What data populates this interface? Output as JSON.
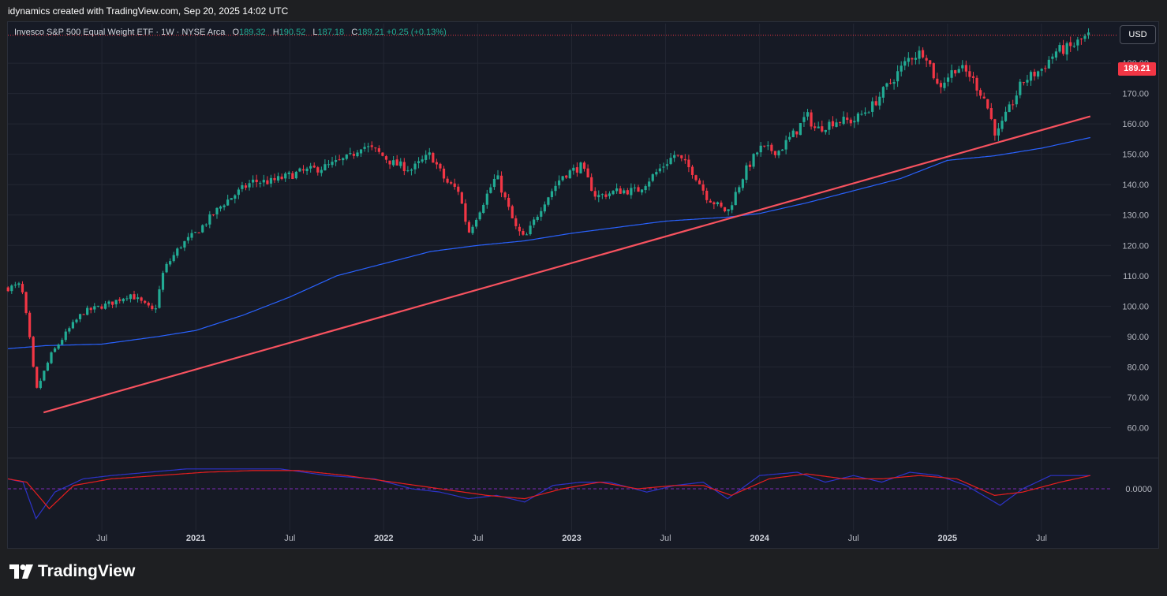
{
  "header": {
    "text": "idynamics created with TradingView.com, Sep 20, 2025 14:02 UTC"
  },
  "legend": {
    "title": "Invesco S&P 500 Equal Weight ETF · 1W · NYSE Arca",
    "o_label": "O",
    "o_value": "189.32",
    "h_label": "H",
    "h_value": "190.52",
    "l_label": "L",
    "l_value": "187.18",
    "c_label": "C",
    "c_value": "189.21",
    "change": "+0.25 (+0.13%)"
  },
  "currency_button": "USD",
  "last_price": "189.21",
  "brand": "TradingView",
  "colors": {
    "background": "#161a25",
    "grid": "#232733",
    "up_candle": "#22ab94",
    "down_candle": "#f23645",
    "moving_average": "#2962ff",
    "trendline": "#f7525f",
    "osc_line_1": "#2d33c9",
    "osc_line_2": "#e91e1e",
    "axis_text": "#b2b5be"
  },
  "chart_data": {
    "type": "candlestick",
    "timeframe": "1W",
    "ylim": [
      50,
      193
    ],
    "y_ticks": [
      60,
      70,
      80,
      90,
      100,
      110,
      120,
      130,
      140,
      150,
      160,
      170,
      180
    ],
    "x_ticks": [
      {
        "label": "Jul",
        "t": 2020.5
      },
      {
        "label": "2021",
        "t": 2021.0
      },
      {
        "label": "Jul",
        "t": 2021.5
      },
      {
        "label": "2022",
        "t": 2022.0
      },
      {
        "label": "Jul",
        "t": 2022.5
      },
      {
        "label": "2023",
        "t": 2023.0
      },
      {
        "label": "Jul",
        "t": 2023.5
      },
      {
        "label": "2024",
        "t": 2024.0
      },
      {
        "label": "Jul",
        "t": 2024.5
      },
      {
        "label": "2025",
        "t": 2025.0
      },
      {
        "label": "Jul",
        "t": 2025.5
      }
    ],
    "xlim": [
      2020.0,
      2025.87
    ],
    "price_path": [
      [
        2020.0,
        106
      ],
      [
        2020.07,
        107
      ],
      [
        2020.11,
        92
      ],
      [
        2020.15,
        72
      ],
      [
        2020.19,
        78
      ],
      [
        2020.23,
        84
      ],
      [
        2020.32,
        92
      ],
      [
        2020.4,
        98
      ],
      [
        2020.55,
        101
      ],
      [
        2020.65,
        104
      ],
      [
        2020.78,
        98
      ],
      [
        2020.83,
        112
      ],
      [
        2020.92,
        120
      ],
      [
        2021.0,
        124
      ],
      [
        2021.15,
        134
      ],
      [
        2021.3,
        141
      ],
      [
        2021.4,
        141
      ],
      [
        2021.55,
        144
      ],
      [
        2021.7,
        146
      ],
      [
        2021.82,
        149
      ],
      [
        2021.88,
        153
      ],
      [
        2021.96,
        151
      ],
      [
        2022.05,
        147
      ],
      [
        2022.15,
        145
      ],
      [
        2022.25,
        150
      ],
      [
        2022.33,
        141
      ],
      [
        2022.4,
        138
      ],
      [
        2022.45,
        124
      ],
      [
        2022.52,
        133
      ],
      [
        2022.6,
        143
      ],
      [
        2022.7,
        126
      ],
      [
        2022.75,
        122
      ],
      [
        2022.85,
        134
      ],
      [
        2022.95,
        143
      ],
      [
        2023.05,
        146
      ],
      [
        2023.13,
        136
      ],
      [
        2023.25,
        138
      ],
      [
        2023.35,
        138
      ],
      [
        2023.45,
        144
      ],
      [
        2023.55,
        150
      ],
      [
        2023.65,
        144
      ],
      [
        2023.72,
        136
      ],
      [
        2023.8,
        132
      ],
      [
        2023.83,
        131
      ],
      [
        2023.92,
        144
      ],
      [
        2024.0,
        152
      ],
      [
        2024.1,
        151
      ],
      [
        2024.2,
        158
      ],
      [
        2024.25,
        163
      ],
      [
        2024.3,
        158
      ],
      [
        2024.4,
        161
      ],
      [
        2024.5,
        161
      ],
      [
        2024.6,
        166
      ],
      [
        2024.7,
        174
      ],
      [
        2024.8,
        182
      ],
      [
        2024.88,
        184
      ],
      [
        2024.95,
        172
      ],
      [
        2025.05,
        179
      ],
      [
        2025.12,
        176
      ],
      [
        2025.2,
        168
      ],
      [
        2025.26,
        156
      ],
      [
        2025.33,
        165
      ],
      [
        2025.4,
        174
      ],
      [
        2025.5,
        178
      ],
      [
        2025.58,
        184
      ],
      [
        2025.65,
        185
      ],
      [
        2025.72,
        188
      ],
      [
        2025.76,
        189.21
      ]
    ],
    "moving_average": [
      [
        2020.0,
        86
      ],
      [
        2020.2,
        87
      ],
      [
        2020.5,
        87.5
      ],
      [
        2020.8,
        90
      ],
      [
        2021.0,
        92
      ],
      [
        2021.25,
        97
      ],
      [
        2021.5,
        103
      ],
      [
        2021.75,
        110
      ],
      [
        2022.0,
        114
      ],
      [
        2022.25,
        118
      ],
      [
        2022.5,
        120
      ],
      [
        2022.75,
        121.5
      ],
      [
        2023.0,
        124
      ],
      [
        2023.25,
        126
      ],
      [
        2023.5,
        128
      ],
      [
        2023.83,
        129.3
      ],
      [
        2024.0,
        130.5
      ],
      [
        2024.25,
        134
      ],
      [
        2024.5,
        138
      ],
      [
        2024.75,
        142
      ],
      [
        2025.0,
        148
      ],
      [
        2025.25,
        149.5
      ],
      [
        2025.5,
        152
      ],
      [
        2025.76,
        155.5
      ]
    ],
    "trendline": {
      "from": [
        2020.19,
        65
      ],
      "to": [
        2025.76,
        162.5
      ]
    },
    "last_price": 189.21,
    "oscillator": {
      "zero_label": "0.0000",
      "line_1": [
        [
          2020.0,
          3
        ],
        [
          2020.08,
          2
        ],
        [
          2020.15,
          -9
        ],
        [
          2020.25,
          -1
        ],
        [
          2020.4,
          3
        ],
        [
          2020.55,
          4
        ],
        [
          2020.75,
          5
        ],
        [
          2020.95,
          6
        ],
        [
          2021.2,
          6
        ],
        [
          2021.45,
          6
        ],
        [
          2021.7,
          4
        ],
        [
          2021.95,
          3
        ],
        [
          2022.15,
          0
        ],
        [
          2022.3,
          -1
        ],
        [
          2022.45,
          -3
        ],
        [
          2022.6,
          -2
        ],
        [
          2022.75,
          -4
        ],
        [
          2022.9,
          1
        ],
        [
          2023.05,
          2
        ],
        [
          2023.2,
          2
        ],
        [
          2023.4,
          -1
        ],
        [
          2023.55,
          1
        ],
        [
          2023.7,
          2
        ],
        [
          2023.83,
          -3
        ],
        [
          2024.0,
          4
        ],
        [
          2024.2,
          5
        ],
        [
          2024.35,
          2
        ],
        [
          2024.5,
          4
        ],
        [
          2024.65,
          2
        ],
        [
          2024.8,
          5
        ],
        [
          2024.95,
          4
        ],
        [
          2025.1,
          1
        ],
        [
          2025.28,
          -5
        ],
        [
          2025.4,
          0
        ],
        [
          2025.55,
          4
        ],
        [
          2025.76,
          4
        ]
      ],
      "line_2": [
        [
          2020.0,
          3
        ],
        [
          2020.1,
          2
        ],
        [
          2020.22,
          -6
        ],
        [
          2020.35,
          1
        ],
        [
          2020.55,
          3
        ],
        [
          2020.8,
          4
        ],
        [
          2021.05,
          5
        ],
        [
          2021.3,
          5.5
        ],
        [
          2021.55,
          5.5
        ],
        [
          2021.8,
          4
        ],
        [
          2022.05,
          2
        ],
        [
          2022.3,
          0
        ],
        [
          2022.55,
          -2
        ],
        [
          2022.75,
          -3
        ],
        [
          2022.95,
          0
        ],
        [
          2023.15,
          2
        ],
        [
          2023.35,
          0
        ],
        [
          2023.55,
          1
        ],
        [
          2023.7,
          1
        ],
        [
          2023.85,
          -2
        ],
        [
          2024.05,
          3
        ],
        [
          2024.25,
          4.5
        ],
        [
          2024.45,
          3
        ],
        [
          2024.65,
          3
        ],
        [
          2024.85,
          4
        ],
        [
          2025.05,
          3
        ],
        [
          2025.25,
          -2
        ],
        [
          2025.4,
          -1
        ],
        [
          2025.6,
          2
        ],
        [
          2025.76,
          4
        ]
      ]
    }
  }
}
